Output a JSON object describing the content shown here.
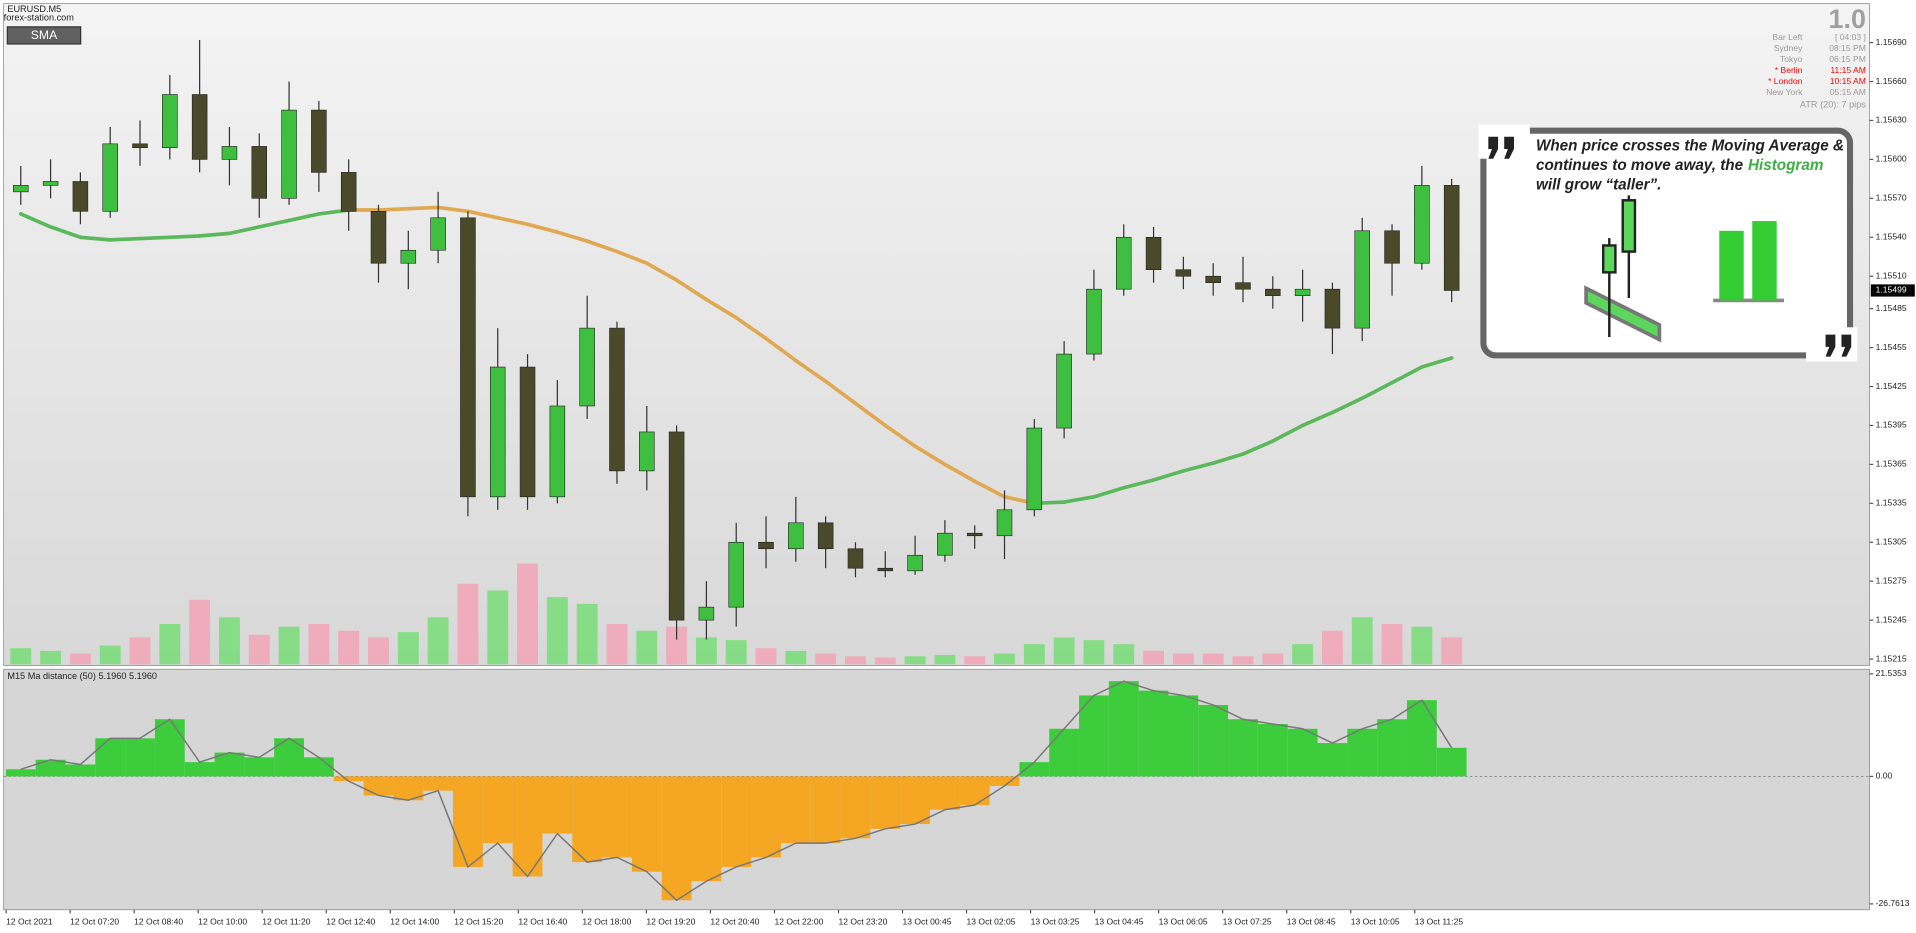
{
  "chart_data": [
    {
      "type": "candlestick",
      "title": "EURUSD.M5",
      "subtitle": "forex-station.com",
      "button": "SMA",
      "version": "1.0",
      "info": [
        {
          "label": "Bar Left",
          "value": "[ 04:03 ]",
          "color": "#999999"
        },
        {
          "label": "Sydney",
          "value": "08:15 PM",
          "color": "#999999"
        },
        {
          "label": "Tokyo",
          "value": "06:15 PM",
          "color": "#999999"
        },
        {
          "label": "* Berlin",
          "value": "11:15 AM",
          "color": "#ff0000"
        },
        {
          "label": "* London",
          "value": "10:15 AM",
          "color": "#ff0000"
        },
        {
          "label": "New York",
          "value": "05:15 AM",
          "color": "#999999"
        }
      ],
      "atr": "ATR (20): 7 pips",
      "callout": {
        "line1": "When price crosses the Moving Average &",
        "line2": "continues to move away, the",
        "highlight": "Histogram",
        "line3": "will grow “taller”.",
        "highlight_color": "#3cb043"
      },
      "open": [
        1.15575,
        1.1558,
        1.15583,
        1.1556,
        1.15612,
        1.15609,
        1.1565,
        1.156,
        1.1561,
        1.1557,
        1.15638,
        1.1559,
        1.1556,
        1.1552,
        1.1553,
        1.15555,
        1.1534,
        1.1544,
        1.1534,
        1.1541,
        1.1547,
        1.1536,
        1.1539,
        1.15245,
        1.15255,
        1.15305,
        1.153,
        1.1532,
        1.153,
        1.15285,
        1.15283,
        1.15295,
        1.15312,
        1.1531,
        1.1533,
        1.15393,
        1.1545,
        1.155,
        1.1554,
        1.15515,
        1.1551,
        1.15505,
        1.155,
        1.15495,
        1.155,
        1.1547,
        1.15545,
        1.1552,
        1.1558
      ],
      "high": [
        1.15595,
        1.156,
        1.1559,
        1.15625,
        1.1563,
        1.15665,
        1.15692,
        1.15625,
        1.1562,
        1.1566,
        1.15645,
        1.156,
        1.15565,
        1.15545,
        1.15575,
        1.1556,
        1.1547,
        1.1545,
        1.1543,
        1.15495,
        1.15475,
        1.1541,
        1.15395,
        1.15275,
        1.1532,
        1.15325,
        1.1534,
        1.15325,
        1.15305,
        1.15298,
        1.1531,
        1.15322,
        1.15318,
        1.15345,
        1.154,
        1.1546,
        1.15515,
        1.1555,
        1.15548,
        1.15525,
        1.1552,
        1.15525,
        1.1551,
        1.15515,
        1.15505,
        1.15555,
        1.1555,
        1.15595,
        1.15585
      ],
      "low": [
        1.15565,
        1.1557,
        1.1555,
        1.15555,
        1.15595,
        1.156,
        1.1559,
        1.1558,
        1.15555,
        1.15565,
        1.15575,
        1.15545,
        1.15505,
        1.155,
        1.1552,
        1.15325,
        1.1533,
        1.1533,
        1.15335,
        1.154,
        1.1535,
        1.15345,
        1.1523,
        1.1523,
        1.1524,
        1.15285,
        1.1529,
        1.15285,
        1.15278,
        1.15278,
        1.1528,
        1.1529,
        1.153,
        1.15292,
        1.15325,
        1.15385,
        1.15445,
        1.15495,
        1.15505,
        1.155,
        1.15495,
        1.1549,
        1.15485,
        1.15475,
        1.1545,
        1.1546,
        1.15495,
        1.15515,
        1.1549
      ],
      "close": [
        1.1558,
        1.15583,
        1.1556,
        1.15612,
        1.15609,
        1.1565,
        1.156,
        1.1561,
        1.1557,
        1.15638,
        1.1559,
        1.1556,
        1.1552,
        1.1553,
        1.15555,
        1.1534,
        1.1544,
        1.1534,
        1.1541,
        1.1547,
        1.1536,
        1.1539,
        1.15245,
        1.15255,
        1.15305,
        1.153,
        1.1532,
        1.153,
        1.15285,
        1.15283,
        1.15295,
        1.15312,
        1.1531,
        1.1533,
        1.15393,
        1.1545,
        1.155,
        1.1554,
        1.15515,
        1.1551,
        1.15505,
        1.155,
        1.15495,
        1.155,
        1.1547,
        1.15545,
        1.1552,
        1.1558,
        1.15499
      ],
      "sma": [
        1.15558,
        1.15548,
        1.1554,
        1.15538,
        1.15539,
        1.1554,
        1.15541,
        1.15543,
        1.15548,
        1.15553,
        1.15558,
        1.15561,
        1.15561,
        1.15562,
        1.15563,
        1.1556,
        1.15555,
        1.1555,
        1.15544,
        1.15537,
        1.15529,
        1.1552,
        1.15507,
        1.15492,
        1.15478,
        1.15462,
        1.15445,
        1.15429,
        1.15412,
        1.15395,
        1.15379,
        1.15365,
        1.15352,
        1.1534,
        1.15335,
        1.15336,
        1.1534,
        1.15347,
        1.15353,
        1.1536,
        1.15366,
        1.15373,
        1.15383,
        1.15395,
        1.15405,
        1.15416,
        1.15428,
        1.1544,
        1.15447
      ],
      "volume": [
        12,
        10,
        8,
        14,
        20,
        30,
        48,
        35,
        22,
        28,
        30,
        25,
        20,
        24,
        35,
        60,
        55,
        75,
        50,
        45,
        30,
        25,
        28,
        20,
        18,
        12,
        10,
        8,
        6,
        5,
        6,
        7,
        6,
        8,
        15,
        20,
        18,
        15,
        10,
        8,
        8,
        6,
        8,
        15,
        25,
        35,
        30,
        28,
        20
      ],
      "last_price": 1.15499,
      "up_color": "#3fbf3f",
      "down_color": "#4a4a2a",
      "wick_color": "#333333",
      "sma_up_color": "#5cb85c",
      "sma_down_color": "#e0a850",
      "volume_up_color": "#70dd70",
      "volume_down_color": "#f2a0b4",
      "ylim": [
        1.1521,
        1.1572
      ],
      "yticks": [
        {
          "value": 1.1569,
          "label": "1.15690"
        },
        {
          "value": 1.1566,
          "label": "1.15660"
        },
        {
          "value": 1.1563,
          "label": "1.15630"
        },
        {
          "value": 1.156,
          "label": "1.15600"
        },
        {
          "value": 1.1557,
          "label": "1.15570"
        },
        {
          "value": 1.1554,
          "label": "1.15540"
        },
        {
          "value": 1.1551,
          "label": "1.15510"
        },
        {
          "value": 1.15485,
          "label": "1.15485"
        },
        {
          "value": 1.15455,
          "label": "1.15455"
        },
        {
          "value": 1.15425,
          "label": "1.15425"
        },
        {
          "value": 1.15395,
          "label": "1.15395"
        },
        {
          "value": 1.15365,
          "label": "1.15365"
        },
        {
          "value": 1.15335,
          "label": "1.15335"
        },
        {
          "value": 1.15305,
          "label": "1.15305"
        },
        {
          "value": 1.15275,
          "label": "1.15275"
        },
        {
          "value": 1.15245,
          "label": "1.15245"
        },
        {
          "value": 1.15215,
          "label": "1.15215"
        }
      ],
      "time_labels": [
        "12 Oct 2021",
        "12 Oct 07:20",
        "12 Oct 08:40",
        "12 Oct 10:00",
        "12 Oct 11:20",
        "12 Oct 12:40",
        "12 Oct 14:00",
        "12 Oct 15:20",
        "12 Oct 16:40",
        "12 Oct 18:00",
        "12 Oct 19:20",
        "12 Oct 20:40",
        "12 Oct 22:00",
        "12 Oct 23:20",
        "13 Oct 00:45",
        "13 Oct 02:05",
        "13 Oct 03:25",
        "13 Oct 04:45",
        "13 Oct 06:05",
        "13 Oct 07:25",
        "13 Oct 08:45",
        "13 Oct 10:05",
        "13 Oct 11:25"
      ]
    },
    {
      "type": "bar",
      "title": "M15 Ma distance (50) 5.1960 5.1960",
      "values": [
        1.5,
        3.5,
        2.5,
        8,
        8,
        12,
        3,
        5,
        4,
        8,
        4,
        -1,
        -4,
        -5,
        -3,
        -19,
        -14,
        -21,
        -12,
        -18,
        -17,
        -20,
        -26,
        -22,
        -19,
        -17,
        -14,
        -14,
        -13,
        -11,
        -10,
        -7,
        -6,
        -2,
        3,
        10,
        17,
        20,
        18,
        17,
        15,
        12,
        11,
        10,
        7,
        10,
        12,
        16,
        6
      ],
      "pos_color": "#3ccc3c",
      "neg_color": "#f5a623",
      "ylim": [
        -28,
        22.5
      ],
      "yticks": [
        21.5353,
        {
          "value": 0,
          "label": "0.00"
        },
        -26.7613
      ]
    }
  ]
}
